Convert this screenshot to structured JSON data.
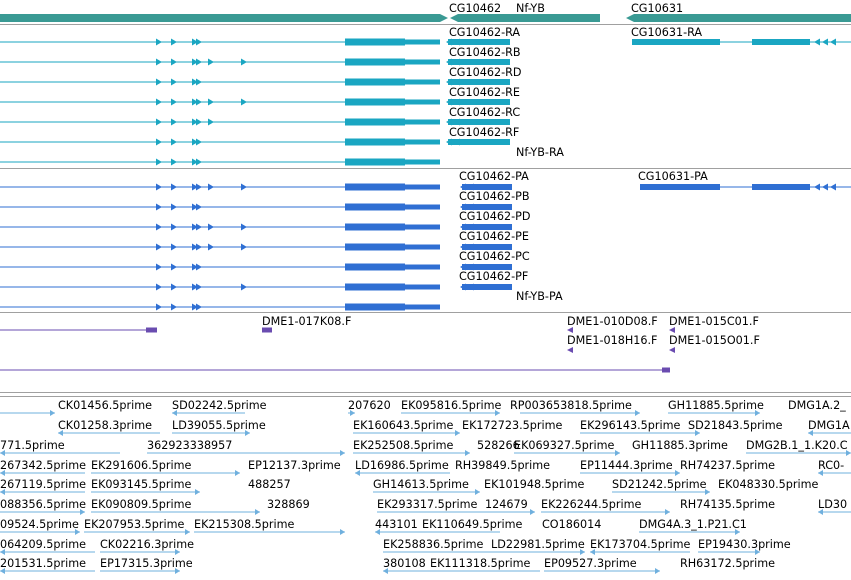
{
  "colors": {
    "gene": "#3a9a94",
    "transcript_a": "#1aa6c2",
    "transcript_b": "#2f6fd3",
    "clone": "#6a4cb0",
    "est": "#6fb0de",
    "separator": "#a0a0a0"
  },
  "tracks": {
    "genes": {
      "labels": [
        "CG10462",
        "Nf-YB",
        "CG10631"
      ]
    },
    "transcripts_a": {
      "labels": [
        "CG10462-RA",
        "CG10631-RA",
        "CG10462-RB",
        "CG10462-RD",
        "CG10462-RE",
        "CG10462-RC",
        "CG10462-RF",
        "Nf-YB-RA"
      ]
    },
    "transcripts_b": {
      "labels": [
        "CG10462-PA",
        "CG10631-PA",
        "CG10462-PB",
        "CG10462-PD",
        "CG10462-PE",
        "CG10462-PC",
        "CG10462-PF",
        "Nf-YB-PA"
      ]
    },
    "clones": {
      "labels": [
        "DME1-017K08.F",
        "DME1-010D08.F",
        "DME1-015C01.F",
        "DME1-018H16.F",
        "DME1-015O01.F"
      ]
    },
    "ests": {
      "labels": [
        "CK01456.5prime",
        "SD02242.5prime",
        "207620",
        "EK095816.5prime",
        "RP003653818.5prime",
        "GH11885.5prime",
        "DMG1A.2_",
        "CK01258.3prime",
        "LD39055.5prime",
        "EK160643.5prime",
        "EK172723.5prime",
        "EK296143.5prime",
        "SD21843.5prime",
        "DMG1A",
        "771.5prime",
        "362923338957",
        "EK252508.5prime",
        "528266",
        "EK069327.5prime",
        "GH11885.3prime",
        "DMG2B.1_1.K20.C",
        "267342.5prime",
        "EK291606.5prime",
        "EP12137.3prime",
        "LD16986.5prime",
        "RH39849.5prime",
        "EP11444.3prime",
        "RH74237.5prime",
        "RC0-",
        "267119.5prime",
        "EK093145.5prime",
        "488257",
        "GH14613.5prime",
        "EK101948.5prime",
        "SD21242.5prime",
        "EK048330.5prime",
        "088356.5prime",
        "EK090809.5prime",
        "328869",
        "EK293317.5prime",
        "124679",
        "EK226244.5prime",
        "RH74135.5prime",
        "LD30",
        "09524.5prime",
        "EK207953.5prime",
        "EK215308.5prime",
        "443101",
        "EK110649.5prime",
        "CO186014",
        "DMG4A.3_1.P21.C1",
        "064209.5prime",
        "CK02216.3prime",
        "EK258836.5prime",
        "LD22981.5prime",
        "EK173704.5prime",
        "EP19430.3prime",
        "201531.5prime",
        "EP17315.3prime",
        "380108",
        "EK111318.5prime",
        "EP09527.3prime",
        "RH63172.5prime"
      ]
    }
  }
}
